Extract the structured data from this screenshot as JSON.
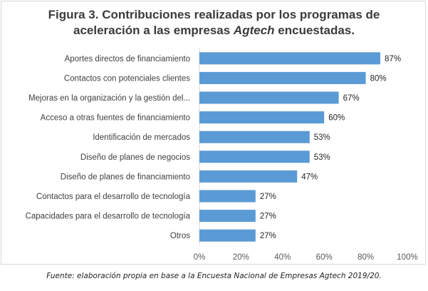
{
  "title": {
    "line1": "Figura 3. Contribuciones realizadas por los programas de",
    "line2_prefix": "aceleración a las empresas ",
    "line2_italic": "Agtech",
    "line2_suffix": " encuestadas."
  },
  "source_note": "Fuente: elaboración propia en base a la Encuesta Nacional de Empresas Agtech 2019/20.",
  "chart_data": {
    "type": "bar",
    "orientation": "horizontal",
    "categories": [
      "Aportes directos de financiamiento",
      "Contactos con potenciales clientes",
      "Mejoras en la organización y la gestión del...",
      "Acceso a otras fuentes de financiamiento",
      "Identificación de mercados",
      "Diseño de planes de negocios",
      "Diseño de planes de financiamiento",
      "Contactos para el desarrollo de tecnología",
      "Capacidades para el desarrollo de tecnología",
      "Otros"
    ],
    "values": [
      87,
      80,
      67,
      60,
      53,
      53,
      47,
      27,
      27,
      27
    ],
    "data_labels": [
      "87%",
      "80%",
      "67%",
      "60%",
      "53%",
      "53%",
      "47%",
      "27%",
      "27%",
      "27%"
    ],
    "xlim": [
      0,
      100
    ],
    "x_ticks": [
      0,
      20,
      40,
      60,
      80,
      100
    ],
    "x_tick_labels": [
      "0%",
      "20%",
      "40%",
      "60%",
      "80%",
      "100%"
    ],
    "grid": false,
    "legend": "none",
    "bar_color": "#5b9bd5"
  }
}
